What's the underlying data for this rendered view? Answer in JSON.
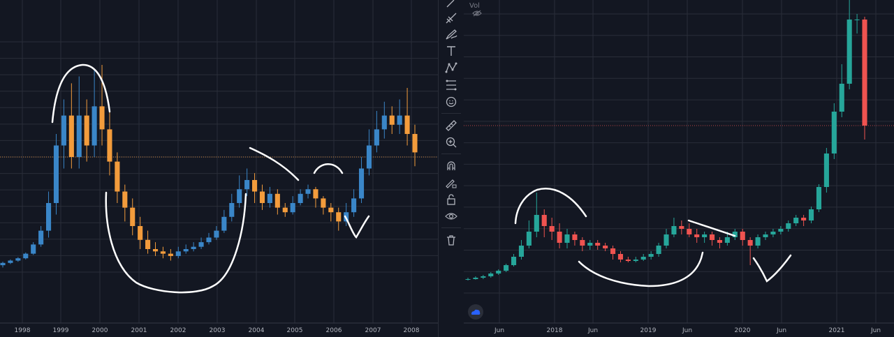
{
  "colors": {
    "background": "#131722",
    "grid": "#2a2e39",
    "left_up": "#3a86c8",
    "left_down": "#f39c3c",
    "right_up": "#26a69a",
    "right_down": "#ef5350",
    "price_line_left": "#d6893a",
    "price_line_right": "#b84545",
    "annotation": "#ffffff"
  },
  "right_header": {
    "vol_label": "Vol",
    "eye_icon": "eye-off-icon"
  },
  "toolbar": {
    "icons": [
      "brush-icon",
      "trend-line-icon",
      "pen-icon",
      "text-icon",
      "pattern-icon",
      "fib-icon",
      "emoji-icon",
      "ruler-icon",
      "zoom-in-icon",
      "magnet-icon",
      "lock-draw-icon",
      "lock-icon",
      "eye-icon",
      "trash-icon"
    ]
  },
  "chart_data": [
    {
      "type": "candlestick",
      "interval": "monthly",
      "x_tick_labels": [
        "1998",
        "1999",
        "2000",
        "2001",
        "2002",
        "2003",
        "2004",
        "2005",
        "2006",
        "2007",
        "2008"
      ],
      "y_range": [
        0,
        1
      ],
      "y_scale": "unlabeled",
      "current_price_line": 0.5,
      "grid": true,
      "series": [
        {
          "candles": [
            [
              0.03,
              0.04,
              0.02,
              0.045
            ],
            [
              0.04,
              0.05,
              0.035,
              0.055
            ],
            [
              0.05,
              0.06,
              0.045,
              0.065
            ],
            [
              0.06,
              0.08,
              0.055,
              0.085
            ],
            [
              0.08,
              0.12,
              0.075,
              0.13
            ],
            [
              0.12,
              0.18,
              0.11,
              0.2
            ],
            [
              0.18,
              0.3,
              0.15,
              0.35
            ],
            [
              0.3,
              0.55,
              0.25,
              0.6
            ],
            [
              0.55,
              0.68,
              0.45,
              0.75
            ],
            [
              0.68,
              0.5,
              0.45,
              0.82
            ],
            [
              0.5,
              0.68,
              0.45,
              0.85
            ],
            [
              0.68,
              0.55,
              0.48,
              0.75
            ],
            [
              0.55,
              0.72,
              0.5,
              0.88
            ],
            [
              0.72,
              0.62,
              0.55,
              0.9
            ],
            [
              0.62,
              0.48,
              0.42,
              0.7
            ],
            [
              0.48,
              0.35,
              0.3,
              0.52
            ],
            [
              0.35,
              0.28,
              0.22,
              0.38
            ],
            [
              0.28,
              0.2,
              0.16,
              0.32
            ],
            [
              0.2,
              0.14,
              0.1,
              0.24
            ],
            [
              0.14,
              0.1,
              0.08,
              0.18
            ],
            [
              0.1,
              0.09,
              0.07,
              0.13
            ],
            [
              0.09,
              0.08,
              0.06,
              0.11
            ],
            [
              0.08,
              0.07,
              0.05,
              0.1
            ],
            [
              0.07,
              0.09,
              0.06,
              0.11
            ],
            [
              0.09,
              0.1,
              0.08,
              0.12
            ],
            [
              0.1,
              0.11,
              0.09,
              0.13
            ],
            [
              0.11,
              0.13,
              0.1,
              0.15
            ],
            [
              0.13,
              0.15,
              0.12,
              0.17
            ],
            [
              0.15,
              0.18,
              0.14,
              0.2
            ],
            [
              0.18,
              0.24,
              0.17,
              0.27
            ],
            [
              0.24,
              0.3,
              0.22,
              0.34
            ],
            [
              0.3,
              0.36,
              0.28,
              0.42
            ],
            [
              0.36,
              0.4,
              0.33,
              0.45
            ],
            [
              0.4,
              0.35,
              0.3,
              0.43
            ],
            [
              0.35,
              0.3,
              0.27,
              0.38
            ],
            [
              0.3,
              0.34,
              0.28,
              0.37
            ],
            [
              0.34,
              0.28,
              0.25,
              0.36
            ],
            [
              0.28,
              0.26,
              0.24,
              0.3
            ],
            [
              0.26,
              0.3,
              0.25,
              0.33
            ],
            [
              0.3,
              0.34,
              0.29,
              0.36
            ],
            [
              0.34,
              0.36,
              0.32,
              0.38
            ],
            [
              0.36,
              0.32,
              0.28,
              0.37
            ],
            [
              0.32,
              0.28,
              0.25,
              0.33
            ],
            [
              0.28,
              0.26,
              0.22,
              0.3
            ],
            [
              0.26,
              0.22,
              0.18,
              0.28
            ],
            [
              0.22,
              0.26,
              0.2,
              0.3
            ],
            [
              0.26,
              0.32,
              0.24,
              0.36
            ],
            [
              0.32,
              0.45,
              0.3,
              0.5
            ],
            [
              0.45,
              0.55,
              0.42,
              0.62
            ],
            [
              0.55,
              0.62,
              0.52,
              0.7
            ],
            [
              0.62,
              0.68,
              0.58,
              0.74
            ],
            [
              0.68,
              0.64,
              0.6,
              0.72
            ],
            [
              0.64,
              0.68,
              0.6,
              0.75
            ],
            [
              0.68,
              0.6,
              0.55,
              0.8
            ],
            [
              0.6,
              0.52,
              0.46,
              0.64
            ]
          ]
        }
      ]
    },
    {
      "type": "candlestick",
      "interval": "monthly",
      "x_tick_labels": [
        "Jun",
        "2018",
        "Jun",
        "2019",
        "Jun",
        "2020",
        "Jun",
        "2021",
        "Jun"
      ],
      "y_range": [
        0,
        1
      ],
      "y_scale": "unlabeled",
      "current_price_line": 0.6,
      "grid": true,
      "series": [
        {
          "candles": [
            [
              0.05,
              0.05,
              0.045,
              0.055
            ],
            [
              0.05,
              0.055,
              0.048,
              0.06
            ],
            [
              0.055,
              0.06,
              0.05,
              0.065
            ],
            [
              0.06,
              0.07,
              0.055,
              0.075
            ],
            [
              0.07,
              0.08,
              0.065,
              0.085
            ],
            [
              0.08,
              0.1,
              0.075,
              0.105
            ],
            [
              0.1,
              0.13,
              0.095,
              0.14
            ],
            [
              0.13,
              0.17,
              0.12,
              0.19
            ],
            [
              0.17,
              0.22,
              0.16,
              0.26
            ],
            [
              0.22,
              0.28,
              0.2,
              0.36
            ],
            [
              0.28,
              0.24,
              0.2,
              0.3
            ],
            [
              0.24,
              0.22,
              0.19,
              0.27
            ],
            [
              0.22,
              0.18,
              0.16,
              0.25
            ],
            [
              0.18,
              0.21,
              0.16,
              0.23
            ],
            [
              0.21,
              0.19,
              0.17,
              0.22
            ],
            [
              0.19,
              0.17,
              0.15,
              0.2
            ],
            [
              0.17,
              0.18,
              0.155,
              0.19
            ],
            [
              0.18,
              0.17,
              0.155,
              0.19
            ],
            [
              0.17,
              0.16,
              0.15,
              0.18
            ],
            [
              0.16,
              0.14,
              0.12,
              0.17
            ],
            [
              0.14,
              0.12,
              0.11,
              0.15
            ],
            [
              0.12,
              0.115,
              0.11,
              0.13
            ],
            [
              0.115,
              0.12,
              0.11,
              0.13
            ],
            [
              0.12,
              0.13,
              0.115,
              0.14
            ],
            [
              0.13,
              0.14,
              0.12,
              0.15
            ],
            [
              0.14,
              0.17,
              0.13,
              0.18
            ],
            [
              0.17,
              0.21,
              0.16,
              0.23
            ],
            [
              0.21,
              0.24,
              0.2,
              0.27
            ],
            [
              0.24,
              0.23,
              0.21,
              0.26
            ],
            [
              0.23,
              0.21,
              0.2,
              0.25
            ],
            [
              0.21,
              0.2,
              0.18,
              0.23
            ],
            [
              0.2,
              0.21,
              0.18,
              0.22
            ],
            [
              0.21,
              0.19,
              0.17,
              0.22
            ],
            [
              0.19,
              0.18,
              0.16,
              0.2
            ],
            [
              0.18,
              0.2,
              0.17,
              0.22
            ],
            [
              0.2,
              0.22,
              0.19,
              0.23
            ],
            [
              0.22,
              0.19,
              0.17,
              0.23
            ],
            [
              0.19,
              0.17,
              0.1,
              0.2
            ],
            [
              0.17,
              0.2,
              0.16,
              0.21
            ],
            [
              0.2,
              0.21,
              0.19,
              0.22
            ],
            [
              0.21,
              0.22,
              0.2,
              0.23
            ],
            [
              0.22,
              0.23,
              0.21,
              0.24
            ],
            [
              0.23,
              0.25,
              0.22,
              0.26
            ],
            [
              0.25,
              0.27,
              0.24,
              0.28
            ],
            [
              0.27,
              0.26,
              0.24,
              0.28
            ],
            [
              0.26,
              0.3,
              0.25,
              0.31
            ],
            [
              0.3,
              0.38,
              0.29,
              0.39
            ],
            [
              0.38,
              0.5,
              0.36,
              0.52
            ],
            [
              0.5,
              0.65,
              0.48,
              0.68
            ],
            [
              0.65,
              0.75,
              0.63,
              0.82
            ],
            [
              0.75,
              0.98,
              0.73,
              1.05
            ],
            [
              0.98,
              0.98,
              0.93,
              1.0
            ],
            [
              0.98,
              0.6,
              0.55,
              0.99
            ]
          ]
        }
      ]
    }
  ]
}
